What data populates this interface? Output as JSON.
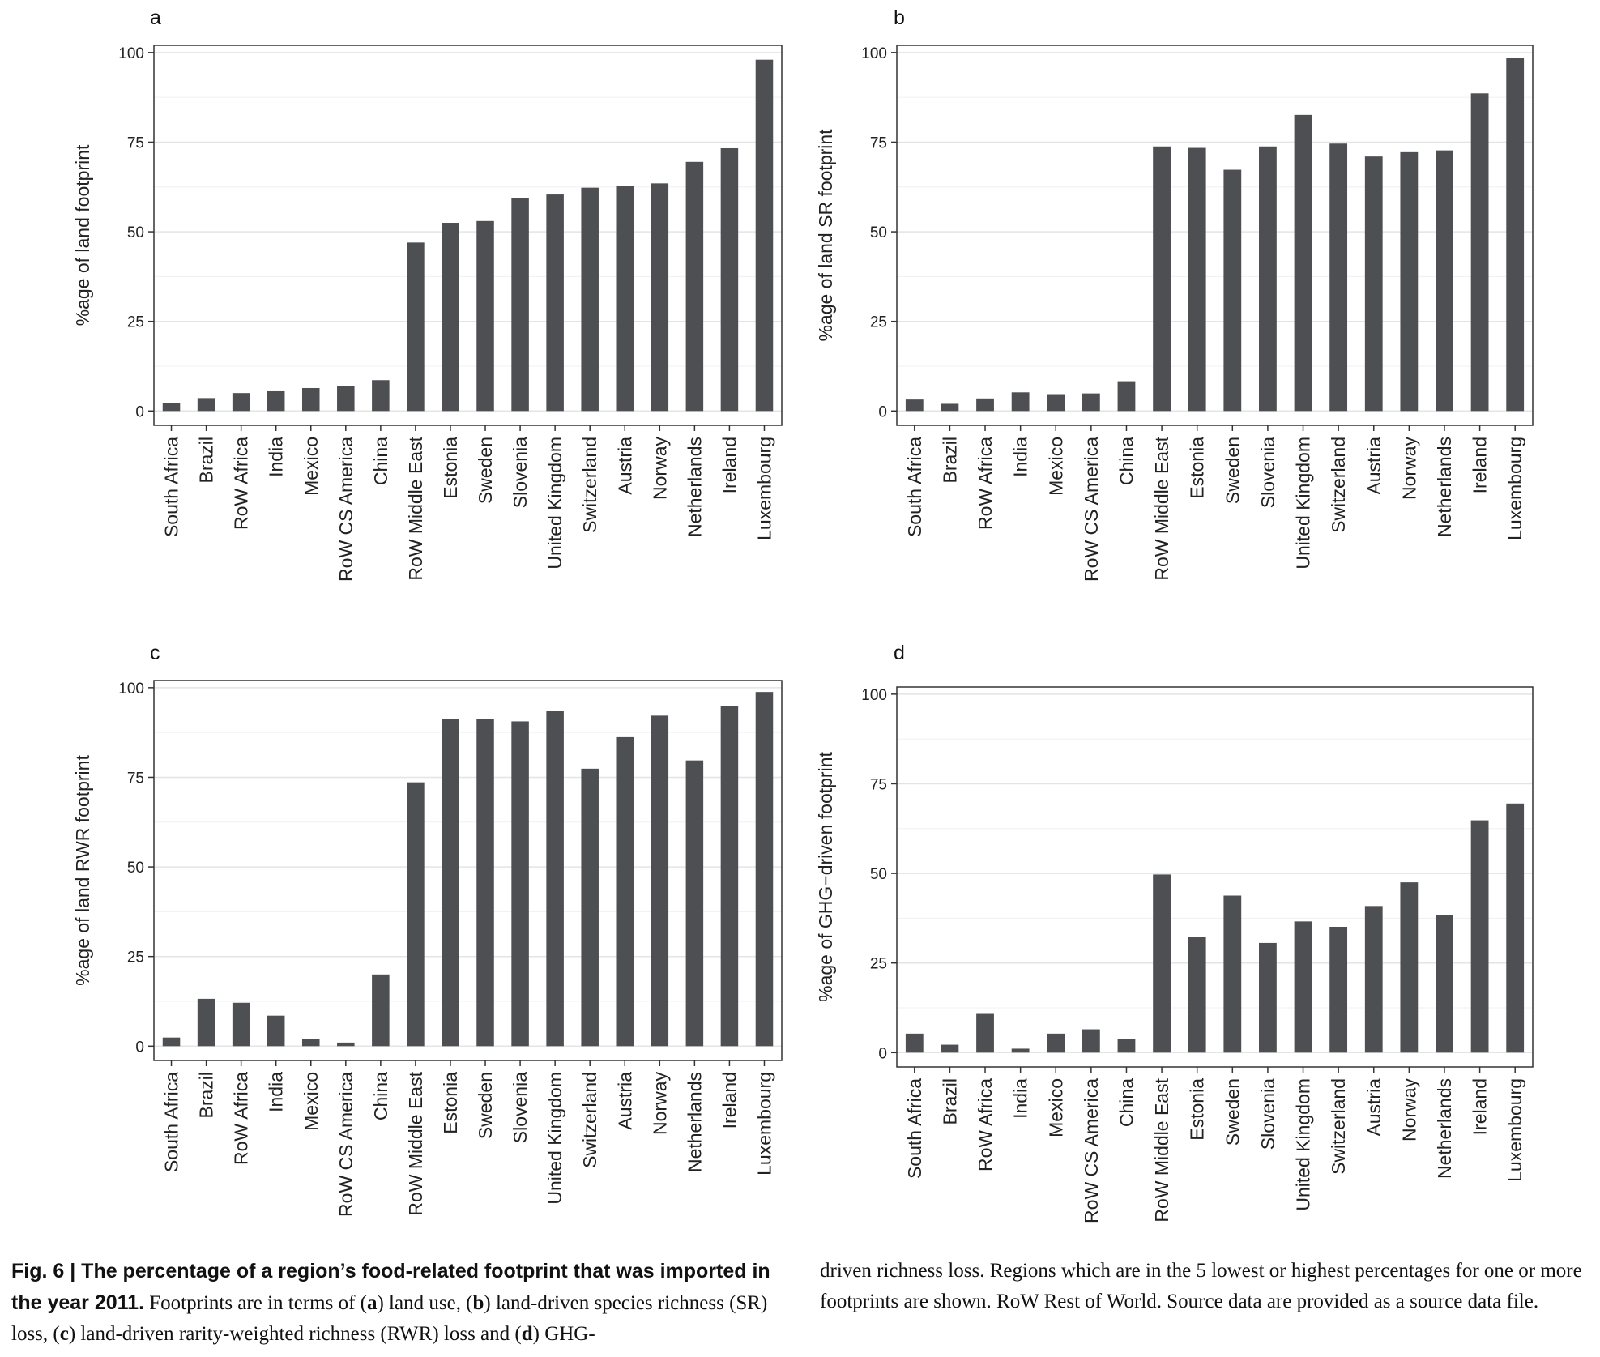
{
  "caption": {
    "fig_label": "Fig. 6 | The percentage of a region’s food-related footprint that was imported in the year 2011.",
    "text_1": " Footprints are in terms of (",
    "a": "a",
    "text_2": ") land use, (",
    "b": "b",
    "text_3": ") land-driven species richness (SR) loss, (",
    "c": "c",
    "text_4": ") land-driven rarity-weighted richness (RWR) loss and (",
    "d": "d",
    "text_5": ") GHG-",
    "text_right": "driven richness loss. Regions which are in the 5 lowest or highest percentages for one or more footprints are shown. RoW Rest of World. Source data are provided as a source data file."
  },
  "chart_data": [
    {
      "type": "bar",
      "panel": "a",
      "ylabel": "%age of land footprint",
      "ylim": [
        -4,
        102
      ],
      "yticks": [
        0,
        25,
        50,
        75,
        100
      ],
      "grid": true,
      "bar_color": "#4d4f52",
      "categories": [
        "South Africa",
        "Brazil",
        "RoW Africa",
        "India",
        "Mexico",
        "RoW CS America",
        "China",
        "RoW Middle East",
        "Estonia",
        "Sweden",
        "Slovenia",
        "United Kingdom",
        "Switzerland",
        "Austria",
        "Norway",
        "Netherlands",
        "Ireland",
        "Luxembourg"
      ],
      "values": [
        2.2,
        3.6,
        5.0,
        5.5,
        6.4,
        6.9,
        8.6,
        47.0,
        52.5,
        53.0,
        59.3,
        60.4,
        62.3,
        62.7,
        63.5,
        69.5,
        73.3,
        98.0
      ]
    },
    {
      "type": "bar",
      "panel": "b",
      "ylabel": "%age of land SR footprint",
      "ylim": [
        -4,
        102
      ],
      "yticks": [
        0,
        25,
        50,
        75,
        100
      ],
      "grid": true,
      "bar_color": "#4d4f52",
      "categories": [
        "South Africa",
        "Brazil",
        "RoW Africa",
        "India",
        "Mexico",
        "RoW CS America",
        "China",
        "RoW Middle East",
        "Estonia",
        "Sweden",
        "Slovenia",
        "United Kingdom",
        "Switzerland",
        "Austria",
        "Norway",
        "Netherlands",
        "Ireland",
        "Luxembourg"
      ],
      "values": [
        3.2,
        2.0,
        3.5,
        5.2,
        4.7,
        4.9,
        8.3,
        73.8,
        73.4,
        67.3,
        73.8,
        82.6,
        74.6,
        71.0,
        72.2,
        72.7,
        88.6,
        98.5
      ]
    },
    {
      "type": "bar",
      "panel": "c",
      "ylabel": "%age of land RWR footprint",
      "ylim": [
        -4,
        102
      ],
      "yticks": [
        0,
        25,
        50,
        75,
        100
      ],
      "grid": true,
      "bar_color": "#4d4f52",
      "categories": [
        "South Africa",
        "Brazil",
        "RoW Africa",
        "India",
        "Mexico",
        "RoW CS America",
        "China",
        "RoW Middle East",
        "Estonia",
        "Sweden",
        "Slovenia",
        "United Kingdom",
        "Switzerland",
        "Austria",
        "Norway",
        "Netherlands",
        "Ireland",
        "Luxembourg"
      ],
      "values": [
        2.4,
        13.2,
        12.1,
        8.5,
        2.0,
        1.0,
        20.0,
        73.6,
        91.2,
        91.3,
        90.6,
        93.5,
        77.4,
        86.2,
        92.2,
        79.7,
        94.8,
        98.8
      ]
    },
    {
      "type": "bar",
      "panel": "d",
      "ylabel": "%age of GHG−driven footprint",
      "ylim": [
        -4,
        102
      ],
      "yticks": [
        0,
        25,
        50,
        75,
        100
      ],
      "grid": true,
      "bar_color": "#4d4f52",
      "categories": [
        "South Africa",
        "Brazil",
        "RoW Africa",
        "India",
        "Mexico",
        "RoW CS America",
        "China",
        "RoW Middle East",
        "Estonia",
        "Sweden",
        "Slovenia",
        "United Kingdom",
        "Switzerland",
        "Austria",
        "Norway",
        "Netherlands",
        "Ireland",
        "Luxembourg"
      ],
      "values": [
        5.3,
        2.2,
        10.8,
        1.1,
        5.3,
        6.5,
        3.8,
        49.7,
        32.3,
        43.8,
        30.6,
        36.6,
        35.1,
        40.9,
        47.5,
        38.4,
        64.8,
        69.5
      ]
    }
  ]
}
